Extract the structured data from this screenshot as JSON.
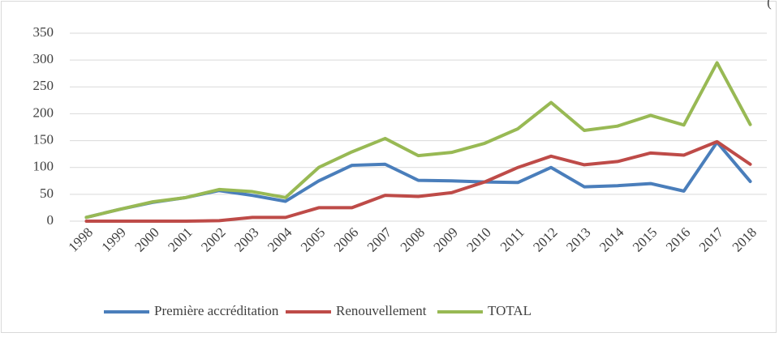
{
  "chart_data": {
    "type": "line",
    "annotation": "(",
    "categories": [
      "1998",
      "1999",
      "2000",
      "2001",
      "2002",
      "2003",
      "2004",
      "2005",
      "2006",
      "2007",
      "2008",
      "2009",
      "2010",
      "2011",
      "2012",
      "2013",
      "2014",
      "2015",
      "2016",
      "2017",
      "2018"
    ],
    "series": [
      {
        "name": "Première accréditation",
        "color": "#4a7ebb",
        "values": [
          7,
          22,
          35,
          44,
          57,
          48,
          37,
          75,
          104,
          106,
          76,
          75,
          73,
          72,
          100,
          64,
          66,
          70,
          56,
          147,
          74
        ]
      },
      {
        "name": "Renouvellement",
        "color": "#be4b48",
        "values": [
          0,
          0,
          0,
          0,
          1,
          7,
          7,
          25,
          25,
          48,
          46,
          53,
          73,
          100,
          121,
          105,
          111,
          127,
          123,
          148,
          106
        ]
      },
      {
        "name": "TOTAL",
        "color": "#98b954",
        "values": [
          7,
          22,
          36,
          44,
          59,
          55,
          44,
          100,
          129,
          154,
          122,
          128,
          145,
          172,
          221,
          169,
          177,
          197,
          179,
          295,
          180
        ]
      }
    ],
    "ylim": [
      0,
      350
    ],
    "yticks": [
      0,
      50,
      100,
      150,
      200,
      250,
      300,
      350
    ],
    "grid": true,
    "legend": "bottom"
  }
}
